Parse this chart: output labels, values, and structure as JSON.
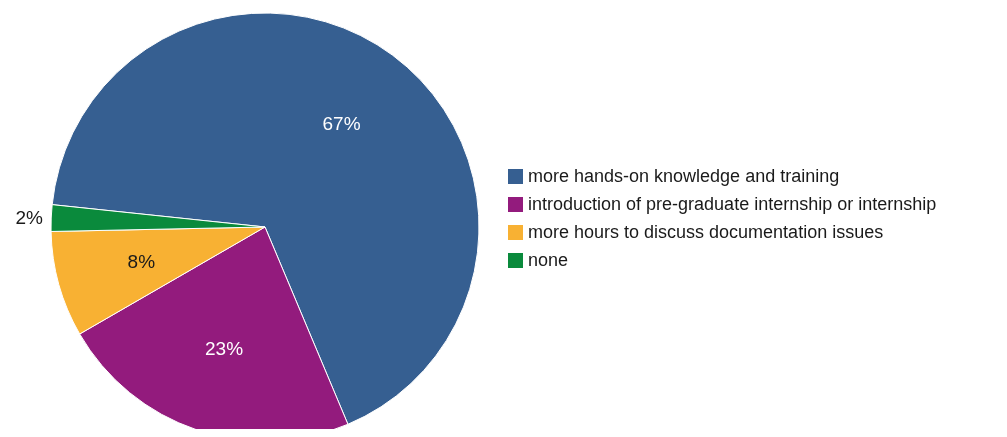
{
  "chart_data": {
    "type": "pie",
    "categories": [
      "more hands-on knowledge and training",
      "introduction of pre-graduate internship or internship",
      "more hours to discuss documentation issues",
      "none"
    ],
    "values": [
      67,
      23,
      8,
      2
    ],
    "colors": [
      "#365f91",
      "#931b7d",
      "#f8b133",
      "#0a8a3c"
    ],
    "value_labels": [
      "67%",
      "23%",
      "8%",
      "2%"
    ],
    "legend": "right"
  }
}
